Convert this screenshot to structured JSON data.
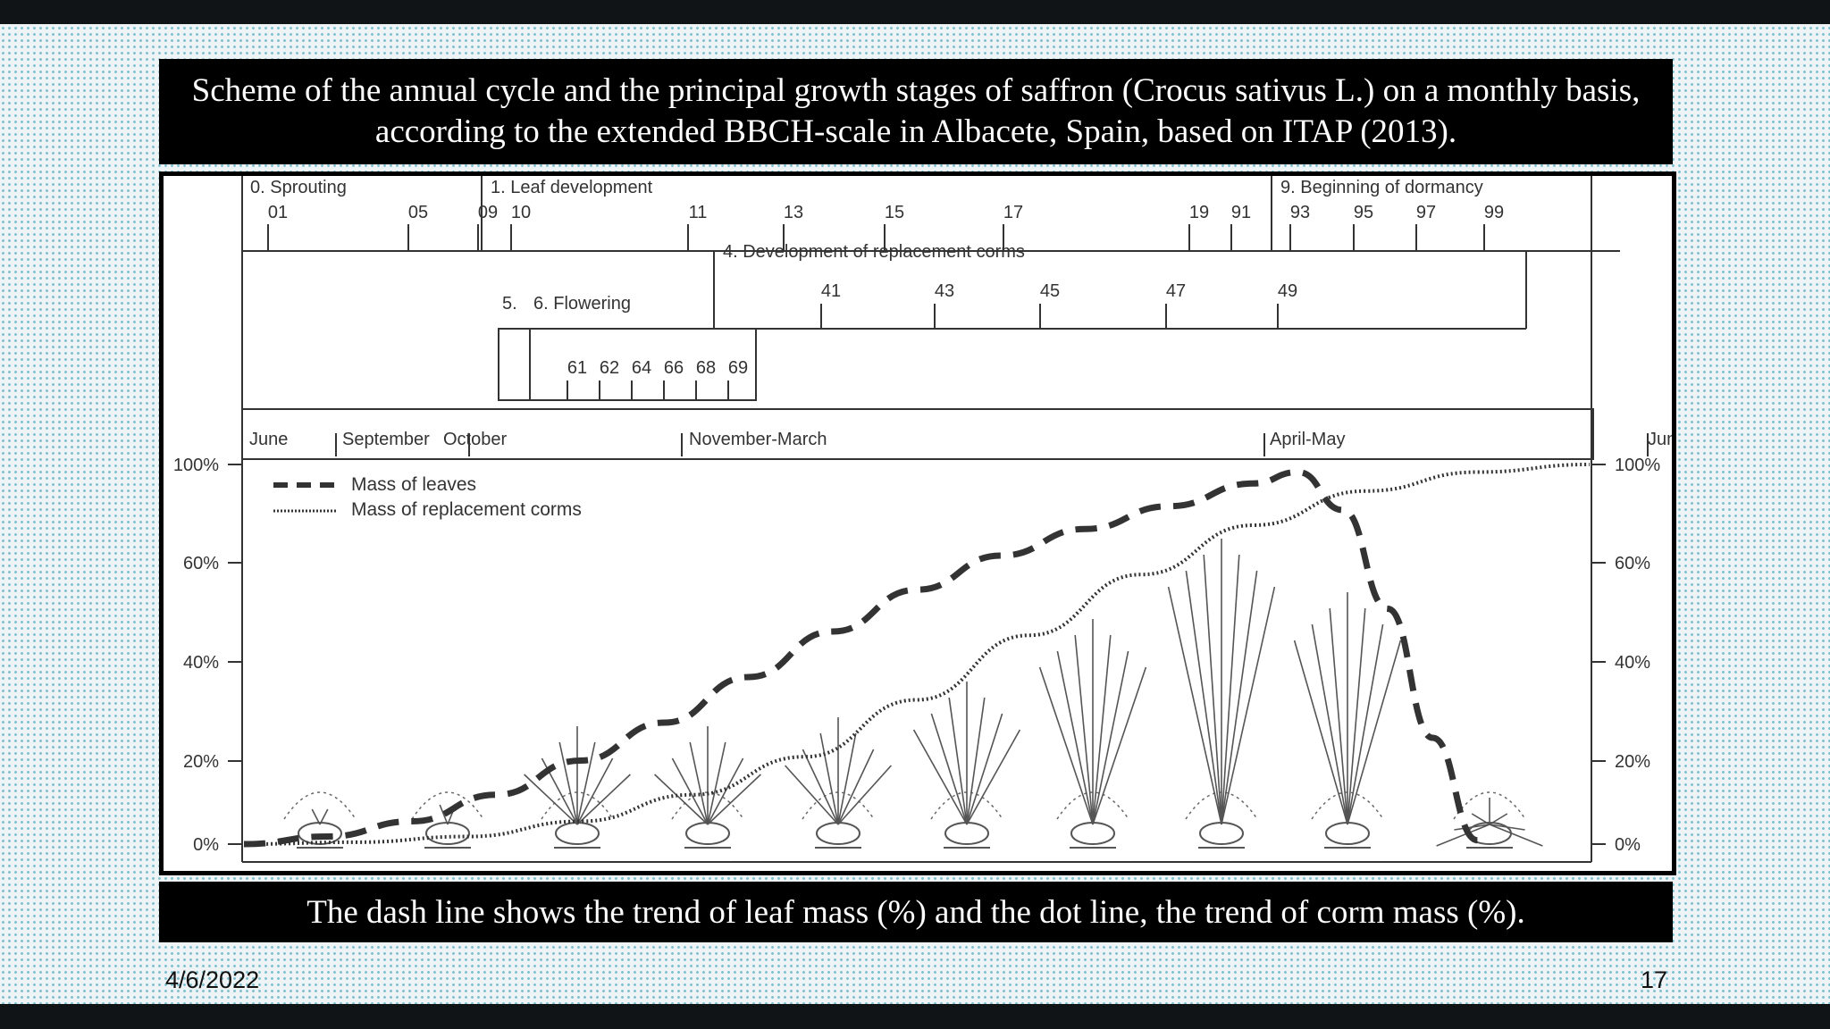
{
  "slide": {
    "title": "Scheme of the annual cycle and the principal growth stages of saffron (Crocus sativus L.) on a monthly basis, according to the extended BBCH-scale in Albacete, Spain, based on ITAP (2013).",
    "caption": "The dash line shows the trend of leaf mass (%) and the dot line, the trend of corm mass (%).",
    "date": "4/6/2022",
    "page_number": "17"
  },
  "colors": {
    "slide_background": "#eef4f6",
    "dot_pattern": "#7fc1cf",
    "text_box": "#000000",
    "line": "#333333"
  },
  "chart_data": {
    "type": "line",
    "stages": [
      {
        "label": "0. Sprouting",
        "codes": [
          "01",
          "05",
          "09"
        ]
      },
      {
        "label": "1. Leaf development",
        "codes": [
          "10",
          "11",
          "13",
          "15",
          "17",
          "19"
        ]
      },
      {
        "label": "9. Beginning of dormancy",
        "codes": [
          "91",
          "93",
          "95",
          "97",
          "99"
        ]
      },
      {
        "label": "4. Development of replacement corms",
        "codes": [
          "41",
          "43",
          "45",
          "47",
          "49"
        ]
      },
      {
        "label": "5.",
        "codes": []
      },
      {
        "label": "6. Flowering",
        "codes": [
          "61",
          "62",
          "64",
          "66",
          "68",
          "69"
        ]
      }
    ],
    "months": [
      "June",
      "September",
      "October",
      "November-March",
      "April-May",
      "June"
    ],
    "yticks_left": [
      "100%",
      "60%",
      "40%",
      "20%",
      "0%"
    ],
    "yticks_right": [
      "100%",
      "60%",
      "40%",
      "20%",
      "0%"
    ],
    "ylim": [
      0,
      100
    ],
    "x_domain": [
      0,
      12
    ],
    "series": [
      {
        "name": "Mass of leaves",
        "style": "dashed",
        "x": [
          0,
          0.75,
          1.5,
          2.25,
          3,
          3.75,
          4.5,
          5.25,
          6,
          6.75,
          7.5,
          8.25,
          9,
          9.4,
          9.8,
          10.2,
          10.6,
          11
        ],
        "values": [
          0,
          2,
          6,
          13,
          22,
          32,
          44,
          56,
          67,
          76,
          83,
          89,
          95,
          98,
          88,
          62,
          28,
          1
        ]
      },
      {
        "name": "Mass of replacement corms",
        "style": "dotted",
        "x": [
          0,
          1,
          2,
          3,
          4,
          5,
          6,
          7,
          8,
          9,
          10,
          11,
          12
        ],
        "values": [
          0,
          0.5,
          2,
          6,
          13,
          23,
          38,
          55,
          71,
          84,
          93,
          98,
          100
        ]
      }
    ],
    "legend_position": "top-left",
    "grid": false
  }
}
